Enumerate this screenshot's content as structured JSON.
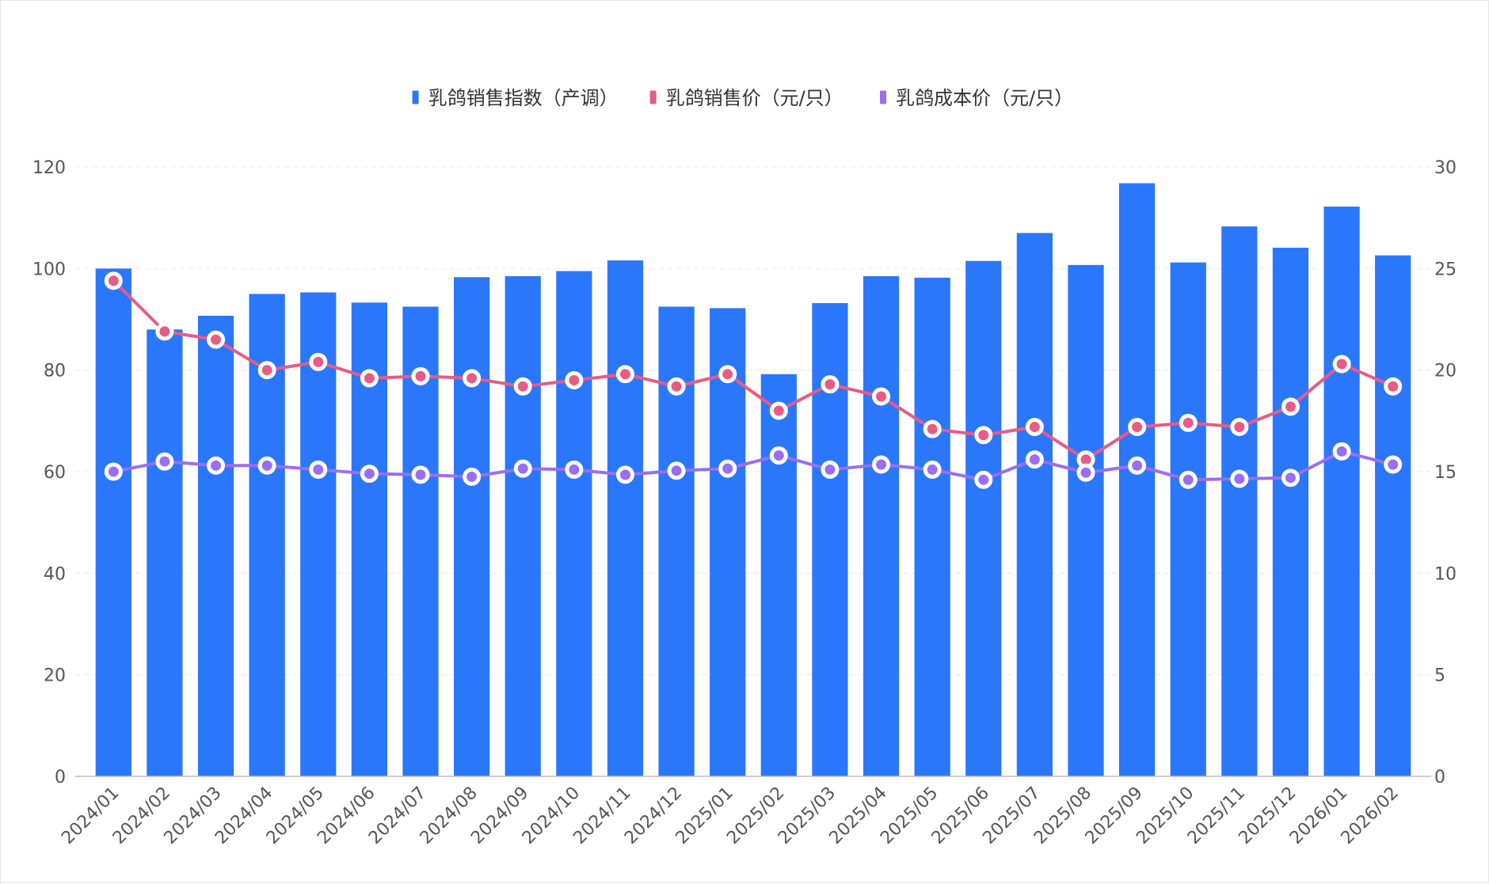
{
  "chart_data": {
    "type": "bar",
    "categories": [
      "2024/01",
      "2024/02",
      "2024/03",
      "2024/04",
      "2024/05",
      "2024/06",
      "2024/07",
      "2024/08",
      "2024/09",
      "2024/10",
      "2024/11",
      "2024/12",
      "2025/01",
      "2025/02",
      "2025/03",
      "2025/04",
      "2025/05",
      "2025/06",
      "2025/07",
      "2025/08",
      "2025/09",
      "2025/10",
      "2025/11",
      "2025/12",
      "2026/01",
      "2026/02"
    ],
    "series": [
      {
        "name": "乳鸽销售指数（产调）",
        "type": "bar",
        "axis": "left",
        "color": "#2a77fb",
        "values": [
          100.0,
          88.0,
          90.7,
          95.0,
          95.3,
          93.3,
          92.5,
          98.3,
          98.5,
          99.5,
          101.6,
          92.5,
          92.2,
          79.2,
          93.2,
          98.5,
          98.2,
          101.5,
          107.0,
          100.7,
          116.8,
          101.2,
          108.3,
          104.1,
          112.2,
          102.6
        ]
      },
      {
        "name": "乳鸽销售价（元/只）",
        "type": "line",
        "axis": "right",
        "color": "#e85b85",
        "values": [
          24.4,
          21.9,
          21.5,
          20.0,
          20.4,
          19.6,
          19.7,
          19.6,
          19.2,
          19.5,
          19.8,
          19.2,
          19.8,
          18.0,
          19.3,
          18.7,
          17.1,
          16.8,
          17.2,
          15.6,
          17.2,
          17.4,
          17.2,
          18.2,
          20.3,
          19.2
        ]
      },
      {
        "name": "乳鸽成本价（元/只）",
        "type": "line",
        "axis": "right",
        "color": "#9a6ef0",
        "values": [
          15.0,
          15.5,
          15.3,
          15.3,
          15.1,
          14.9,
          14.85,
          14.75,
          15.15,
          15.1,
          14.85,
          15.05,
          15.15,
          15.8,
          15.1,
          15.35,
          15.1,
          14.6,
          15.6,
          14.95,
          15.3,
          14.6,
          14.65,
          14.7,
          16.0,
          15.35
        ]
      }
    ],
    "left_axis": {
      "min": 0,
      "max": 120,
      "ticks": [
        0,
        20,
        40,
        60,
        80,
        100,
        120
      ]
    },
    "right_axis": {
      "min": 0,
      "max": 30,
      "ticks": [
        0,
        5,
        10,
        15,
        20,
        25,
        30
      ]
    },
    "legend_position": "top-center",
    "grid": "horizontal-dashed"
  }
}
